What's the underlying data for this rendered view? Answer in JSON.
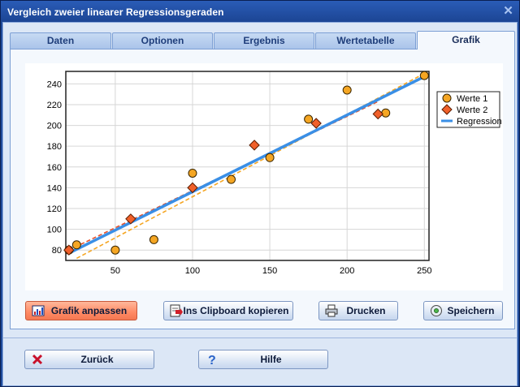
{
  "window": {
    "title": "Vergleich zweier linearer Regressionsgeraden",
    "close_glyph": "✕"
  },
  "tabs": [
    {
      "label": "Daten",
      "active": false
    },
    {
      "label": "Optionen",
      "active": false
    },
    {
      "label": "Ergebnis",
      "active": false
    },
    {
      "label": "Wertetabelle",
      "active": false
    },
    {
      "label": "Grafik",
      "active": true
    }
  ],
  "buttons": {
    "grafik_anpassen": "Grafik anpassen",
    "clipboard": "Ins Clipboard kopieren",
    "drucken": "Drucken",
    "speichern": "Speichern",
    "zurueck": "Zurück",
    "hilfe": "Hilfe"
  },
  "icons": {
    "grafik_anpassen": "chart-settings-icon",
    "clipboard": "clipboard-copy-icon",
    "drucken": "printer-icon",
    "speichern": "disk-save-icon",
    "zurueck": "red-x-icon",
    "hilfe": "question-mark-icon"
  },
  "colors": {
    "werte1": "#f5a623",
    "werte2": "#f0602a",
    "regression": "#3a8fe6",
    "fit1": "#f5a623",
    "fit2": "#e8512a",
    "accent_button": "#ff8a64"
  },
  "chart_data": {
    "type": "scatter",
    "xlim": [
      18,
      253
    ],
    "ylim": [
      70,
      252
    ],
    "xticks": [
      50,
      100,
      150,
      200,
      250
    ],
    "yticks": [
      80,
      100,
      120,
      140,
      160,
      180,
      200,
      220,
      240
    ],
    "grid": true,
    "legend_position": "right",
    "series": [
      {
        "name": "Werte 1",
        "marker": "circle",
        "x": [
          20,
          25,
          50,
          75,
          100,
          125,
          150,
          175,
          200,
          225,
          250
        ],
        "y": [
          80,
          85,
          80,
          90,
          154,
          148,
          169,
          206,
          234,
          212,
          248
        ]
      },
      {
        "name": "Werte 2",
        "marker": "diamond",
        "x": [
          20,
          60,
          100,
          140,
          180,
          220
        ],
        "y": [
          80,
          110,
          140,
          181,
          202,
          211
        ]
      },
      {
        "name": "Regression",
        "marker": "line",
        "x": [
          20,
          250
        ],
        "y": [
          77,
          247
        ]
      }
    ],
    "fit_lines": [
      {
        "series": "Werte 1",
        "style": "dashed",
        "x": [
          25,
          250
        ],
        "y": [
          72,
          250
        ]
      },
      {
        "series": "Werte 2",
        "style": "dashed",
        "x": [
          20,
          220
        ],
        "y": [
          80,
          223
        ]
      }
    ]
  }
}
